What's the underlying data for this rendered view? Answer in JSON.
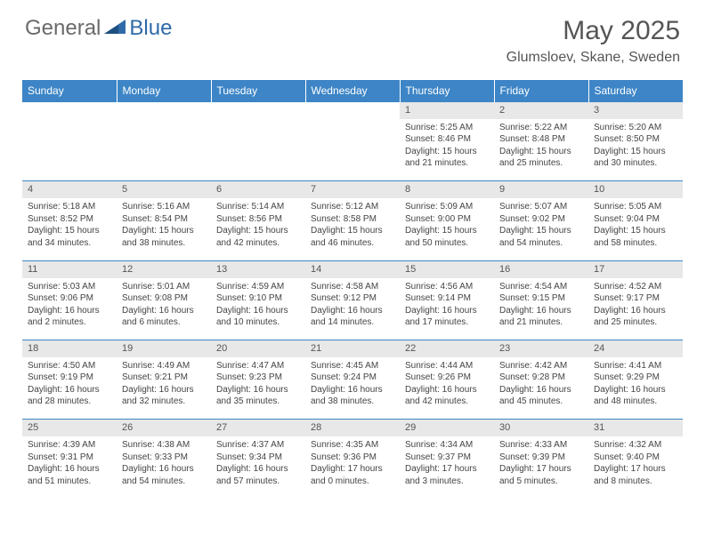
{
  "brand": {
    "part1": "General",
    "part2": "Blue"
  },
  "title": "May 2025",
  "location": "Glumsloev, Skane, Sweden",
  "colors": {
    "header_bg": "#3d85c6",
    "daynum_bg": "#e8e8e8",
    "border": "#3d85c6",
    "text": "#444444",
    "title_text": "#555555",
    "logo_gray": "#6a6a6a",
    "logo_blue": "#2f6aa8"
  },
  "weekdays": [
    "Sunday",
    "Monday",
    "Tuesday",
    "Wednesday",
    "Thursday",
    "Friday",
    "Saturday"
  ],
  "first_weekday_index": 4,
  "days": [
    {
      "n": 1,
      "sr": "5:25 AM",
      "ss": "8:46 PM",
      "dl": "15 hours and 21 minutes."
    },
    {
      "n": 2,
      "sr": "5:22 AM",
      "ss": "8:48 PM",
      "dl": "15 hours and 25 minutes."
    },
    {
      "n": 3,
      "sr": "5:20 AM",
      "ss": "8:50 PM",
      "dl": "15 hours and 30 minutes."
    },
    {
      "n": 4,
      "sr": "5:18 AM",
      "ss": "8:52 PM",
      "dl": "15 hours and 34 minutes."
    },
    {
      "n": 5,
      "sr": "5:16 AM",
      "ss": "8:54 PM",
      "dl": "15 hours and 38 minutes."
    },
    {
      "n": 6,
      "sr": "5:14 AM",
      "ss": "8:56 PM",
      "dl": "15 hours and 42 minutes."
    },
    {
      "n": 7,
      "sr": "5:12 AM",
      "ss": "8:58 PM",
      "dl": "15 hours and 46 minutes."
    },
    {
      "n": 8,
      "sr": "5:09 AM",
      "ss": "9:00 PM",
      "dl": "15 hours and 50 minutes."
    },
    {
      "n": 9,
      "sr": "5:07 AM",
      "ss": "9:02 PM",
      "dl": "15 hours and 54 minutes."
    },
    {
      "n": 10,
      "sr": "5:05 AM",
      "ss": "9:04 PM",
      "dl": "15 hours and 58 minutes."
    },
    {
      "n": 11,
      "sr": "5:03 AM",
      "ss": "9:06 PM",
      "dl": "16 hours and 2 minutes."
    },
    {
      "n": 12,
      "sr": "5:01 AM",
      "ss": "9:08 PM",
      "dl": "16 hours and 6 minutes."
    },
    {
      "n": 13,
      "sr": "4:59 AM",
      "ss": "9:10 PM",
      "dl": "16 hours and 10 minutes."
    },
    {
      "n": 14,
      "sr": "4:58 AM",
      "ss": "9:12 PM",
      "dl": "16 hours and 14 minutes."
    },
    {
      "n": 15,
      "sr": "4:56 AM",
      "ss": "9:14 PM",
      "dl": "16 hours and 17 minutes."
    },
    {
      "n": 16,
      "sr": "4:54 AM",
      "ss": "9:15 PM",
      "dl": "16 hours and 21 minutes."
    },
    {
      "n": 17,
      "sr": "4:52 AM",
      "ss": "9:17 PM",
      "dl": "16 hours and 25 minutes."
    },
    {
      "n": 18,
      "sr": "4:50 AM",
      "ss": "9:19 PM",
      "dl": "16 hours and 28 minutes."
    },
    {
      "n": 19,
      "sr": "4:49 AM",
      "ss": "9:21 PM",
      "dl": "16 hours and 32 minutes."
    },
    {
      "n": 20,
      "sr": "4:47 AM",
      "ss": "9:23 PM",
      "dl": "16 hours and 35 minutes."
    },
    {
      "n": 21,
      "sr": "4:45 AM",
      "ss": "9:24 PM",
      "dl": "16 hours and 38 minutes."
    },
    {
      "n": 22,
      "sr": "4:44 AM",
      "ss": "9:26 PM",
      "dl": "16 hours and 42 minutes."
    },
    {
      "n": 23,
      "sr": "4:42 AM",
      "ss": "9:28 PM",
      "dl": "16 hours and 45 minutes."
    },
    {
      "n": 24,
      "sr": "4:41 AM",
      "ss": "9:29 PM",
      "dl": "16 hours and 48 minutes."
    },
    {
      "n": 25,
      "sr": "4:39 AM",
      "ss": "9:31 PM",
      "dl": "16 hours and 51 minutes."
    },
    {
      "n": 26,
      "sr": "4:38 AM",
      "ss": "9:33 PM",
      "dl": "16 hours and 54 minutes."
    },
    {
      "n": 27,
      "sr": "4:37 AM",
      "ss": "9:34 PM",
      "dl": "16 hours and 57 minutes."
    },
    {
      "n": 28,
      "sr": "4:35 AM",
      "ss": "9:36 PM",
      "dl": "17 hours and 0 minutes."
    },
    {
      "n": 29,
      "sr": "4:34 AM",
      "ss": "9:37 PM",
      "dl": "17 hours and 3 minutes."
    },
    {
      "n": 30,
      "sr": "4:33 AM",
      "ss": "9:39 PM",
      "dl": "17 hours and 5 minutes."
    },
    {
      "n": 31,
      "sr": "4:32 AM",
      "ss": "9:40 PM",
      "dl": "17 hours and 8 minutes."
    }
  ],
  "labels": {
    "sunrise": "Sunrise:",
    "sunset": "Sunset:",
    "daylight": "Daylight:"
  }
}
